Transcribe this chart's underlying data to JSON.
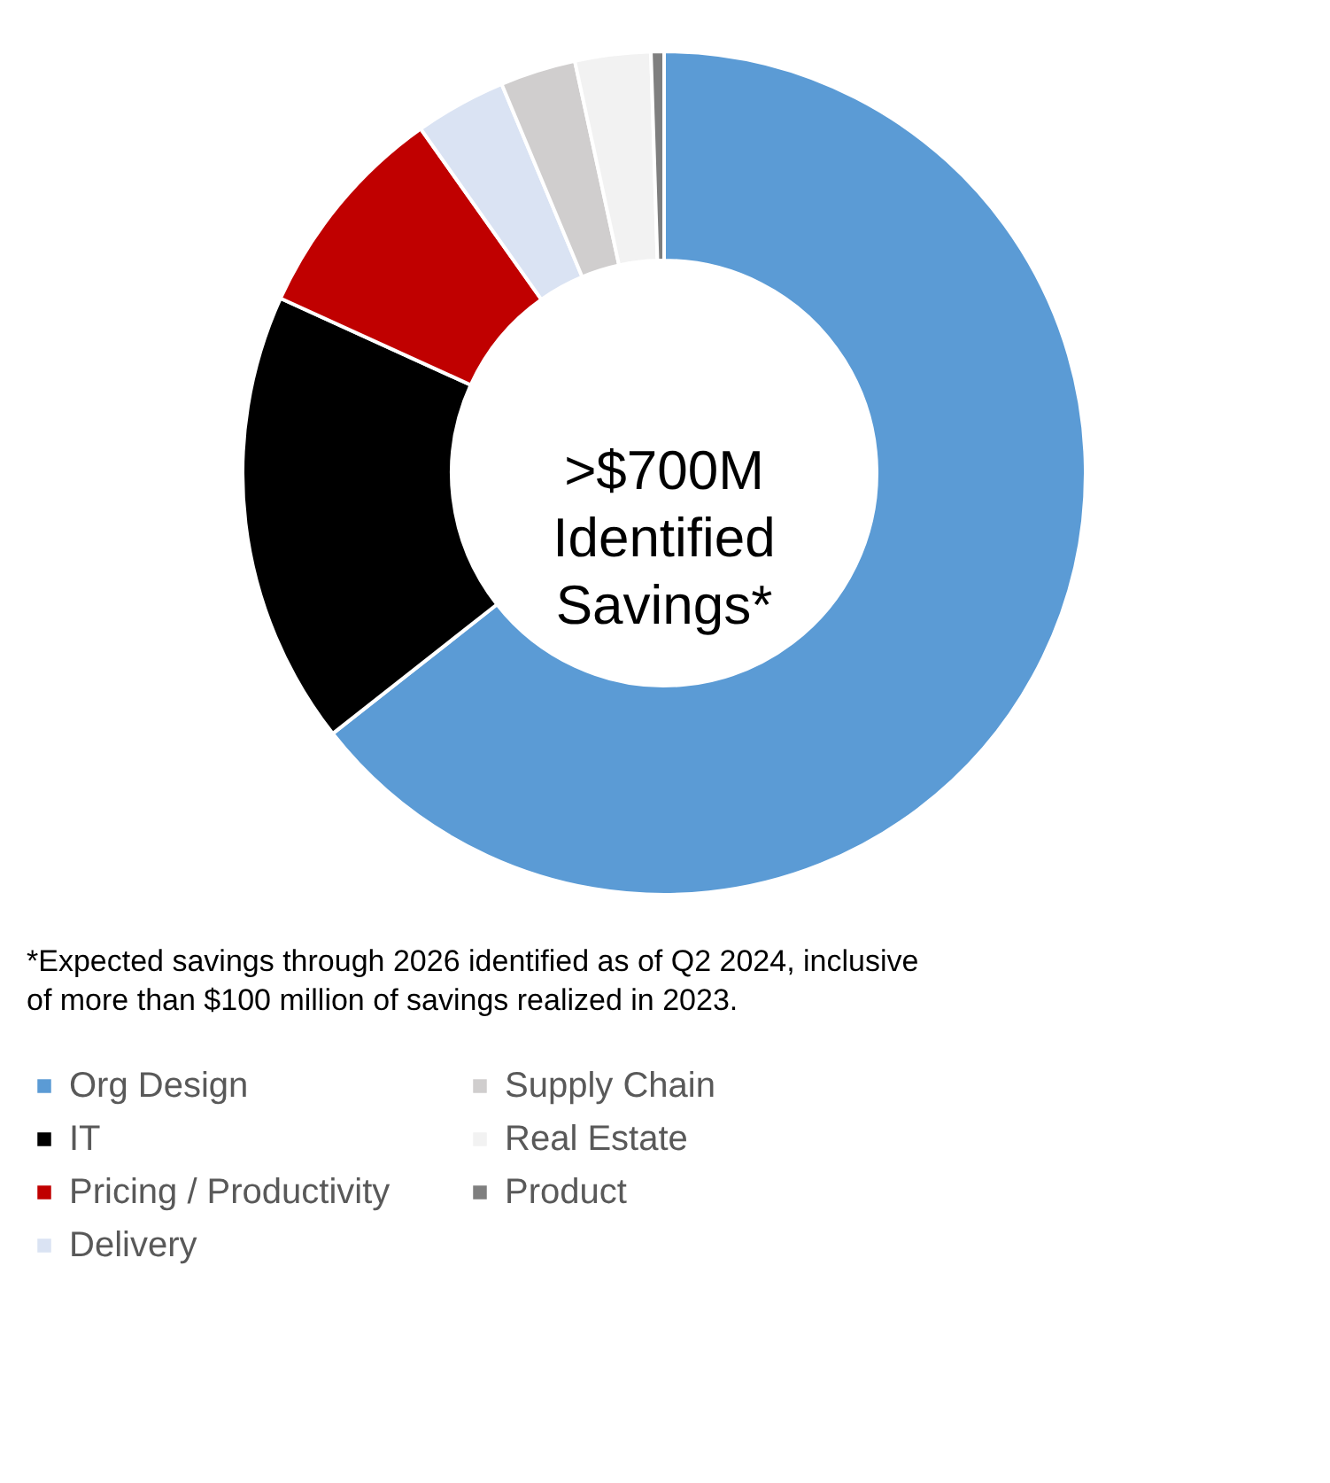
{
  "chart_data": {
    "type": "donut",
    "categories": [
      "Org Design",
      "IT",
      "Pricing / Productivity",
      "Delivery",
      "Supply Chain",
      "Real Estate",
      "Product"
    ],
    "values": [
      64.4,
      17.4,
      8.4,
      3.5,
      2.9,
      2.9,
      0.5
    ],
    "colors": [
      "#5b9bd5",
      "#000000",
      "#c00000",
      "#dae3f3",
      "#d0cece",
      "#f2f2f2",
      "#7f7f7f"
    ],
    "legend": "bottom",
    "annotations": [
      ">$700M\nIdentified\nSavings*",
      "*Expected savings through 2026 identified as of Q2 2024, inclusive\nof more than $100 million of savings realized in 2023."
    ]
  }
}
